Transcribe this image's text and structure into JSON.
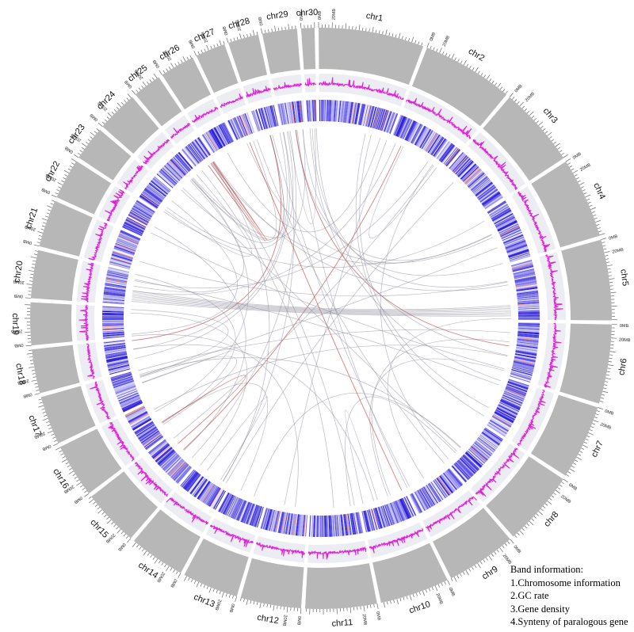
{
  "chromosomes": [
    {
      "name": "chr1",
      "sizeMB": 158,
      "tickLabels": [
        "0MB",
        "20MB"
      ]
    },
    {
      "name": "chr2",
      "sizeMB": 137,
      "tickLabels": [
        "0MB",
        "20MB"
      ]
    },
    {
      "name": "chr3",
      "sizeMB": 121,
      "tickLabels": [
        "0MB",
        "20MB"
      ]
    },
    {
      "name": "chr4",
      "sizeMB": 121,
      "tickLabels": [
        "0MB",
        "20MB"
      ]
    },
    {
      "name": "chr5",
      "sizeMB": 121,
      "tickLabels": [
        "0MB",
        "20MB"
      ]
    },
    {
      "name": "chr6",
      "sizeMB": 119,
      "tickLabels": [
        "0MB",
        "20MB"
      ]
    },
    {
      "name": "chr7",
      "sizeMB": 112,
      "tickLabels": [
        "0MB",
        "20MB"
      ]
    },
    {
      "name": "chr8",
      "sizeMB": 113,
      "tickLabels": [
        "0MB",
        "20MB"
      ]
    },
    {
      "name": "chr9",
      "sizeMB": 105,
      "tickLabels": [
        "0MB",
        "20MB"
      ]
    },
    {
      "name": "chr10",
      "sizeMB": 104,
      "tickLabels": [
        "0MB",
        "20MB"
      ]
    },
    {
      "name": "chr11",
      "sizeMB": 107,
      "tickLabels": [
        "0MB",
        "20MB"
      ]
    },
    {
      "name": "chr12",
      "sizeMB": 91,
      "tickLabels": [
        "0MB",
        "20MB"
      ]
    },
    {
      "name": "chr13",
      "sizeMB": 84,
      "tickLabels": [
        "0MB",
        "20MB"
      ]
    },
    {
      "name": "chr14",
      "sizeMB": 84,
      "tickLabels": [
        "0MB",
        "20MB"
      ]
    },
    {
      "name": "chr15",
      "sizeMB": 85,
      "tickLabels": [
        "0MB",
        "20MB"
      ]
    },
    {
      "name": "chr16",
      "sizeMB": 81,
      "tickLabels": [
        "0MB",
        "20MB"
      ]
    },
    {
      "name": "chr17",
      "sizeMB": 73,
      "tickLabels": [
        "0MB",
        "20MB"
      ]
    },
    {
      "name": "chr18",
      "sizeMB": 66,
      "tickLabels": [
        "0MB",
        "20MB"
      ]
    },
    {
      "name": "chr19",
      "sizeMB": 64,
      "tickLabels": [
        "0MB",
        "20MB"
      ]
    },
    {
      "name": "chr20",
      "sizeMB": 72,
      "tickLabels": [
        "0MB",
        "20MB"
      ]
    },
    {
      "name": "chr21",
      "sizeMB": 71,
      "tickLabels": [
        "0MB",
        "20MB"
      ]
    },
    {
      "name": "chr22",
      "sizeMB": 61,
      "tickLabels": [
        "0MB",
        "20MB"
      ]
    },
    {
      "name": "chr23",
      "sizeMB": 52,
      "tickLabels": [
        "0MB",
        "20MB"
      ]
    },
    {
      "name": "chr24",
      "sizeMB": 62,
      "tickLabels": [
        "0MB",
        "20MB"
      ]
    },
    {
      "name": "chr25",
      "sizeMB": 43,
      "tickLabels": [
        "0MB",
        "20MB"
      ]
    },
    {
      "name": "chr26",
      "sizeMB": 52,
      "tickLabels": [
        "0MB",
        "20MB"
      ]
    },
    {
      "name": "chr27",
      "sizeMB": 45,
      "tickLabels": [
        "0MB",
        "20MB"
      ]
    },
    {
      "name": "chr28",
      "sizeMB": 46,
      "tickLabels": [
        "0MB",
        "20MB"
      ]
    },
    {
      "name": "chr29",
      "sizeMB": 52,
      "tickLabels": [
        "0MB"
      ]
    },
    {
      "name": "chr30",
      "sizeMB": 20,
      "tickLabels": [
        "0MB"
      ]
    }
  ],
  "legend": {
    "title": "Band information:",
    "items": [
      "1.Chromosome information",
      "2.GC rate",
      "3.Gene density",
      "4.Synteny of paralogous gene"
    ]
  },
  "colors": {
    "chromosome": "#b7b7b7",
    "gc_line": "#e020d8",
    "track_bg": "#ececf3",
    "density_high": "#1f12d8",
    "density_low": "#ffffff",
    "density_hot": "#ef9a8e",
    "link": "#8a8a9a",
    "link_red": "#c02828"
  }
}
